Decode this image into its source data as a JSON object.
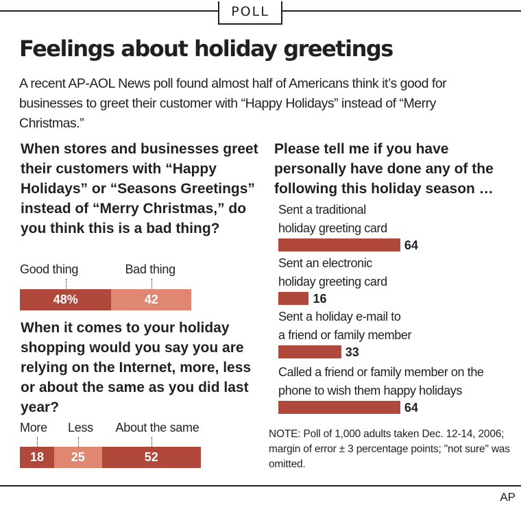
{
  "header": {
    "tag": "POLL",
    "title": "Feelings about holiday greetings"
  },
  "intro": "A recent AP-AOL News poll found almost half of Americans think it’s good for businesses to greet their customer with “Happy Holidays” instead of “Merry Christmas.”",
  "colors": {
    "dark_red": "#b1483c",
    "light_red": "#df8770",
    "text": "#231f20"
  },
  "chart_data": [
    {
      "type": "bar",
      "orientation": "horizontal-stacked",
      "question": "When stores and businesses greet their customers with “Happy Holidays” or “Seasons Greetings” instead of “Merry Christmas,” do you think this is a bad thing?",
      "categories": [
        "Good thing",
        "Bad thing"
      ],
      "values": [
        48,
        42
      ],
      "value_labels": [
        "48%",
        "42"
      ]
    },
    {
      "type": "bar",
      "orientation": "horizontal-stacked",
      "question": "When it comes to your holiday shopping would you say you are relying on the Internet, more, less or about the same as you did last year?",
      "categories": [
        "More",
        "Less",
        "About the same"
      ],
      "values": [
        18,
        25,
        52
      ],
      "value_labels": [
        "18",
        "25",
        "52"
      ]
    },
    {
      "type": "bar",
      "orientation": "horizontal",
      "question": "Please tell me if you have personally have done any of the following this holiday season …",
      "categories": [
        "Sent a traditional holiday greeting card",
        "Sent an electronic holiday greeting card",
        "Sent a holiday e-mail to a friend or family member",
        "Called a friend or family member on the phone to wish them happy holidays"
      ],
      "category_lines": [
        [
          "Sent a traditional",
          "holiday greeting card"
        ],
        [
          "Sent an electronic",
          "holiday greeting card"
        ],
        [
          "Sent a holiday e-mail to",
          "a friend or family member"
        ],
        [
          "Called a friend or family member on the",
          "phone to wish them happy holidays"
        ]
      ],
      "values": [
        64,
        16,
        33,
        64
      ],
      "value_labels": [
        "64",
        "16",
        "33",
        "64"
      ]
    }
  ],
  "note": "NOTE: Poll of 1,000 adults taken Dec. 12-14, 2006; margin of error ± 3 percentage points; \"not sure\" was omitted.",
  "credit": "AP"
}
